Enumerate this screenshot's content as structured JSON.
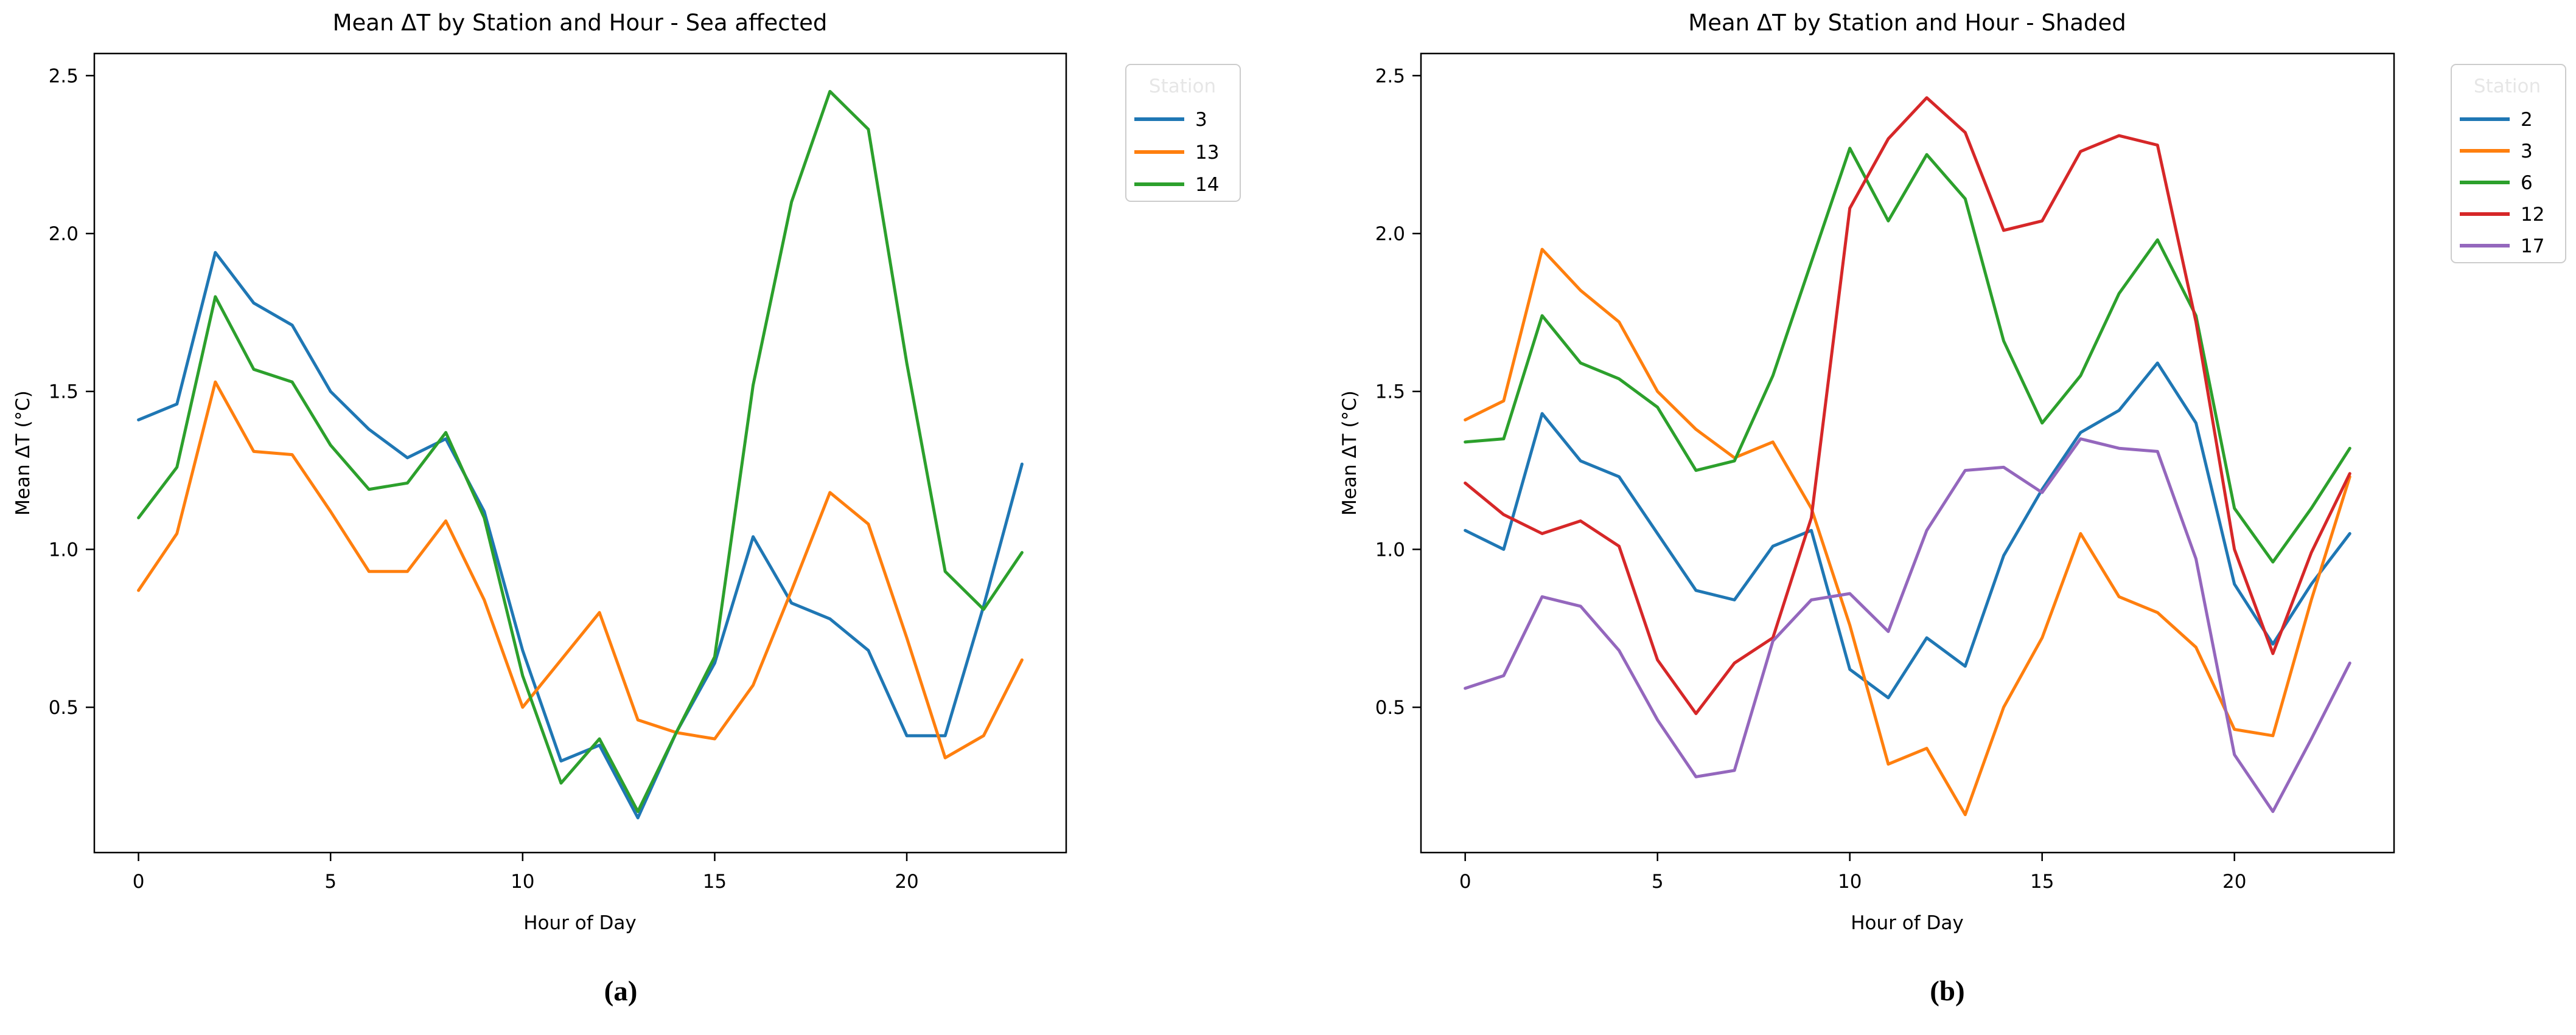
{
  "captions": {
    "a": "(a)",
    "b": "(b)"
  },
  "chart_data": [
    {
      "id": "a",
      "type": "line",
      "title": "Mean ΔT by Station and Hour - Sea affected",
      "xlabel": "Hour of Day",
      "ylabel": "Mean ΔT (°C)",
      "legend_title": "Station",
      "legend_position": "outside upper right",
      "grid": false,
      "x": [
        0,
        1,
        2,
        3,
        4,
        5,
        6,
        7,
        8,
        9,
        10,
        11,
        12,
        13,
        14,
        15,
        16,
        17,
        18,
        19,
        20,
        21,
        22,
        23
      ],
      "x_ticks": [
        "0",
        "5",
        "10",
        "15",
        "20"
      ],
      "x_tick_values": [
        0,
        5,
        10,
        15,
        20
      ],
      "y_ticks": [
        "0.5",
        "1.0",
        "1.5",
        "2.0",
        "2.5"
      ],
      "y_tick_values": [
        0.5,
        1.0,
        1.5,
        2.0,
        2.5
      ],
      "xlim": [
        -1.15,
        24.15
      ],
      "ylim": [
        0.04,
        2.57
      ],
      "series": [
        {
          "name": "3",
          "color": "#1f77b4",
          "values": [
            1.41,
            1.46,
            1.94,
            1.78,
            1.71,
            1.5,
            1.38,
            1.29,
            1.35,
            1.12,
            0.68,
            0.33,
            0.38,
            0.15,
            0.42,
            0.64,
            1.04,
            0.83,
            0.78,
            0.68,
            0.41,
            0.41,
            0.82,
            1.27
          ]
        },
        {
          "name": "13",
          "color": "#ff7f0e",
          "values": [
            0.87,
            1.05,
            1.53,
            1.31,
            1.3,
            1.12,
            0.93,
            0.93,
            1.09,
            0.84,
            0.5,
            0.65,
            0.8,
            0.46,
            0.42,
            0.4,
            0.57,
            0.87,
            1.18,
            1.08,
            0.72,
            0.34,
            0.41,
            0.65
          ]
        },
        {
          "name": "14",
          "color": "#2ca02c",
          "values": [
            1.1,
            1.26,
            1.8,
            1.57,
            1.53,
            1.33,
            1.19,
            1.21,
            1.37,
            1.1,
            0.6,
            0.26,
            0.4,
            0.17,
            0.42,
            0.66,
            1.52,
            2.1,
            2.45,
            2.33,
            1.59,
            0.93,
            0.81,
            0.99
          ]
        }
      ]
    },
    {
      "id": "b",
      "type": "line",
      "title": "Mean ΔT by Station and Hour - Shaded",
      "xlabel": "Hour of Day",
      "ylabel": "Mean ΔT (°C)",
      "legend_title": "Station",
      "legend_position": "outside upper right",
      "grid": false,
      "x": [
        0,
        1,
        2,
        3,
        4,
        5,
        6,
        7,
        8,
        9,
        10,
        11,
        12,
        13,
        14,
        15,
        16,
        17,
        18,
        19,
        20,
        21,
        22,
        23
      ],
      "x_ticks": [
        "0",
        "5",
        "10",
        "15",
        "20"
      ],
      "x_tick_values": [
        0,
        5,
        10,
        15,
        20
      ],
      "y_ticks": [
        "0.5",
        "1.0",
        "1.5",
        "2.0",
        "2.5"
      ],
      "y_tick_values": [
        0.5,
        1.0,
        1.5,
        2.0,
        2.5
      ],
      "xlim": [
        -1.15,
        24.15
      ],
      "ylim": [
        0.04,
        2.57
      ],
      "series": [
        {
          "name": "2",
          "color": "#1f77b4",
          "values": [
            1.06,
            1.0,
            1.43,
            1.28,
            1.23,
            1.05,
            0.87,
            0.84,
            1.01,
            1.06,
            0.62,
            0.53,
            0.72,
            0.63,
            0.98,
            1.19,
            1.37,
            1.44,
            1.59,
            1.4,
            0.89,
            0.7,
            0.89,
            1.05
          ]
        },
        {
          "name": "3",
          "color": "#ff7f0e",
          "values": [
            1.41,
            1.47,
            1.95,
            1.82,
            1.72,
            1.5,
            1.38,
            1.29,
            1.34,
            1.13,
            0.76,
            0.32,
            0.37,
            0.16,
            0.5,
            0.72,
            1.05,
            0.85,
            0.8,
            0.69,
            0.43,
            0.41,
            0.84,
            1.23
          ]
        },
        {
          "name": "6",
          "color": "#2ca02c",
          "values": [
            1.34,
            1.35,
            1.74,
            1.59,
            1.54,
            1.45,
            1.25,
            1.28,
            1.55,
            1.91,
            2.27,
            2.04,
            2.25,
            2.11,
            1.66,
            1.4,
            1.55,
            1.81,
            1.98,
            1.74,
            1.13,
            0.96,
            1.13,
            1.32
          ]
        },
        {
          "name": "12",
          "color": "#d62728",
          "values": [
            1.21,
            1.11,
            1.05,
            1.09,
            1.01,
            0.65,
            0.48,
            0.64,
            0.72,
            1.1,
            2.08,
            2.3,
            2.43,
            2.32,
            2.01,
            2.04,
            2.26,
            2.31,
            2.28,
            1.72,
            1.0,
            0.67,
            0.99,
            1.24
          ]
        },
        {
          "name": "17",
          "color": "#9467bd",
          "values": [
            0.56,
            0.6,
            0.85,
            0.82,
            0.68,
            0.46,
            0.28,
            0.3,
            0.71,
            0.84,
            0.86,
            0.74,
            1.06,
            1.25,
            1.26,
            1.18,
            1.35,
            1.32,
            1.31,
            0.97,
            0.35,
            0.17,
            0.4,
            0.64
          ]
        }
      ]
    }
  ]
}
